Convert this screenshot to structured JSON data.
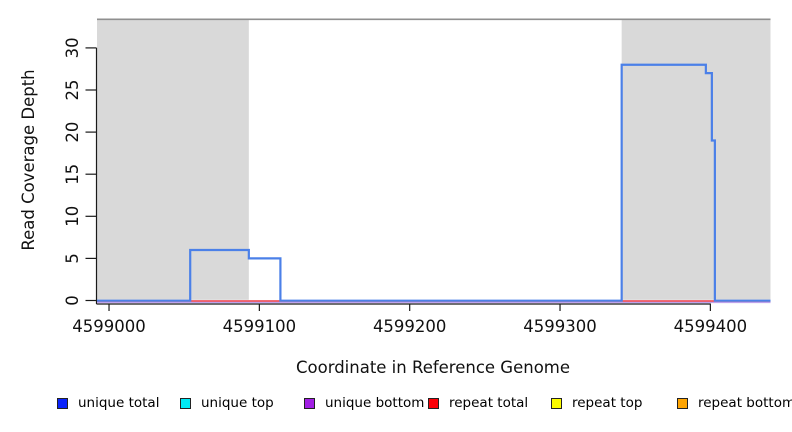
{
  "chart_data": {
    "type": "line",
    "subtype": "step-coverage-plot",
    "title": "",
    "xlabel": "Coordinate in Reference Genome",
    "ylabel": "Read Coverage Depth",
    "xlim": [
      4598992,
      4599440
    ],
    "ylim": [
      0,
      33.5
    ],
    "xticks": [
      4599000,
      4599100,
      4599200,
      4599300,
      4599400
    ],
    "yticks": [
      0,
      5,
      10,
      15,
      20,
      25,
      30
    ],
    "grid": false,
    "shaded_regions": [
      {
        "from": 4598992,
        "to": 4599093,
        "color": "#d9d9d9"
      },
      {
        "from": 4599341,
        "to": 4599440,
        "color": "#d9d9d9"
      }
    ],
    "top_boundary_line": {
      "value": 33.4,
      "from": 4598992,
      "to": 4599440,
      "color": "#8f8f8f"
    },
    "series": [
      {
        "name": "unique total",
        "legend_color": "#0b24fb",
        "line_color": "#4b80e8",
        "steps": [
          [
            4598992,
            0
          ],
          [
            4599054,
            6
          ],
          [
            4599093,
            5
          ],
          [
            4599114,
            0
          ],
          [
            4599341,
            28
          ],
          [
            4599397,
            27
          ],
          [
            4599401,
            19
          ],
          [
            4599403,
            0
          ]
        ]
      },
      {
        "name": "unique top",
        "legend_color": "#00e9f4",
        "line_color": "#00e9f4",
        "steps": [
          [
            4598992,
            0
          ]
        ]
      },
      {
        "name": "unique bottom",
        "legend_color": "#a21fe4",
        "line_color": "#bfa2ec",
        "steps": [
          [
            4598992,
            0
          ]
        ]
      },
      {
        "name": "repeat total",
        "legend_color": "#fb0007",
        "line_color": "#ee3a47",
        "steps": [
          [
            4598992,
            0
          ]
        ]
      },
      {
        "name": "repeat top",
        "legend_color": "#fdfd00",
        "line_color": "#fdfd00",
        "steps": [
          [
            4598992,
            0
          ]
        ]
      },
      {
        "name": "repeat bottom",
        "legend_color": "#ffa503",
        "line_color": "#ffa503",
        "steps": [
          [
            4598992,
            0
          ]
        ]
      }
    ],
    "legend": {
      "position": "bottom",
      "items": [
        "unique total",
        "unique top",
        "unique bottom",
        "repeat total",
        "repeat top",
        "repeat bottom"
      ]
    },
    "axis_color": "#1a1a1a",
    "tick_label_fontsize_px": 16.5
  }
}
